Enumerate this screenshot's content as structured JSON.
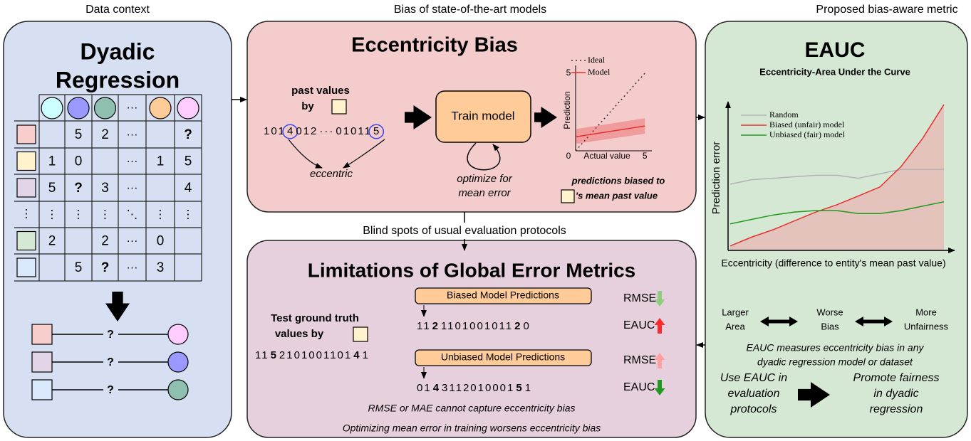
{
  "captions": {
    "data_context": "Data context",
    "bias": "Bias of state-of-the-art models",
    "metric": "Proposed bias-aware metric",
    "blind_spots": "Blind spots of usual evaluation protocols"
  },
  "dyadic": {
    "title": [
      "Dyadic",
      "Regression"
    ],
    "header": [
      {
        "color": "#ccffff"
      },
      {
        "color": "#9999ff"
      },
      {
        "color": "#8fbfae"
      },
      {
        "text": "···"
      },
      {
        "color": "#ffcc99"
      },
      {
        "color": "#ffccff"
      }
    ],
    "rows": [
      {
        "color": "#f8cecc",
        "cells": [
          null,
          "5",
          "2",
          "···",
          null,
          "?"
        ]
      },
      {
        "color": "#fff2cc",
        "cells": [
          "1",
          "0",
          null,
          "···",
          "1",
          "5"
        ]
      },
      {
        "color": "#e1d5e7",
        "cells": [
          "5",
          "?",
          "3",
          "···",
          null,
          "4"
        ]
      },
      {
        "text": "⋮",
        "cells": [
          "⋮",
          "⋮",
          "⋮",
          "⋱",
          "⋮",
          "⋮"
        ]
      },
      {
        "color": "#d5e8d4",
        "cells": [
          "2",
          null,
          "2",
          "···",
          "0",
          null
        ]
      },
      {
        "color": "#dae8fc",
        "cells": [
          null,
          "5",
          "?",
          "···",
          "3",
          null
        ]
      }
    ],
    "pairs": [
      {
        "from": "#f8cecc",
        "to": "#ffccff",
        "label": "?"
      },
      {
        "from": "#e1d5e7",
        "to": "#9999ff",
        "label": "?"
      },
      {
        "from": "#dae8fc",
        "to": "#8fbfae",
        "label": "?"
      }
    ]
  },
  "bias": {
    "title": "Eccentricity Bias",
    "past_values": [
      "past values",
      "by"
    ],
    "sequence": [
      {
        "text": "101"
      },
      {
        "text": "4",
        "circled": true
      },
      {
        "text": "012"
      },
      {
        "text": "···"
      },
      {
        "text": "01011"
      },
      {
        "text": "5",
        "circled": true
      }
    ],
    "eccentric": "eccentric",
    "model_box": "Train model",
    "optimize": [
      "optimize for",
      "mean error"
    ],
    "result": [
      "predictions biased to",
      "'s mean past value"
    ],
    "chart": {
      "type": "line",
      "x_label": "Actual value",
      "y_label": "Prediction",
      "xlim": [
        0,
        5.5
      ],
      "ylim": [
        0,
        5.5
      ],
      "xticks": [
        0,
        5
      ],
      "yticks": [
        5
      ],
      "series": [
        {
          "name": "Ideal",
          "color": "#333333",
          "style": "dotted",
          "x": [
            0,
            5
          ],
          "values": [
            0,
            5
          ]
        },
        {
          "name": "Model",
          "color": "#e83030",
          "x": [
            0,
            5
          ],
          "values": [
            0.9,
            1.6
          ],
          "lower": [
            0.45,
            1.1
          ],
          "upper": [
            1.4,
            2.1
          ]
        }
      ]
    }
  },
  "limits": {
    "title": "Limitations of Global Error Metrics",
    "ground_truth": [
      "Test ground truth",
      "values by"
    ],
    "truth_sequence": [
      {
        "text": "11"
      },
      {
        "text": "5",
        "bold": true
      },
      {
        "text": "2101001101"
      },
      {
        "text": "4",
        "bold": true
      },
      {
        "text": "1"
      }
    ],
    "predictions": [
      {
        "label": "Biased Model Predictions",
        "sequence": [
          {
            "text": "11"
          },
          {
            "text": "2",
            "bold": true
          },
          {
            "text": "1101001011"
          },
          {
            "text": "2",
            "bold": true
          },
          {
            "text": "0"
          }
        ],
        "metrics": [
          {
            "name": "RMSE",
            "trend": "down",
            "color": "#8fce7f"
          },
          {
            "name": "EAUC",
            "trend": "up",
            "color": "#ff2a2a"
          }
        ]
      },
      {
        "label": "Unbiased Model Predictions",
        "sequence": [
          {
            "text": "01"
          },
          {
            "text": "4",
            "bold": true
          },
          {
            "text": "3112010001"
          },
          {
            "text": "5",
            "bold": true
          },
          {
            "text": "1"
          }
        ],
        "metrics": [
          {
            "name": "RMSE",
            "trend": "up",
            "color": "#ff9f9f"
          },
          {
            "name": "EAUC",
            "trend": "down",
            "color": "#1f9a1f"
          }
        ]
      }
    ],
    "notes": [
      "RMSE  or MAE cannot capture eccentricity bias",
      "Optimizing mean error in training worsens eccentricity bias"
    ]
  },
  "eauc": {
    "title": "EAUC",
    "subtitle": "Eccentricity-Area Under the Curve",
    "chart": {
      "type": "line",
      "x_label": "Eccentricity (difference to entity's mean past value)",
      "y_label": "Prediction error",
      "xlim": [
        0,
        1.05
      ],
      "ylim": [
        0,
        1
      ],
      "x": [
        0,
        0.1,
        0.2,
        0.3,
        0.4,
        0.5,
        0.6,
        0.7,
        0.8,
        0.9,
        1
      ],
      "series": [
        {
          "name": "Random",
          "color": "#b3b3b3",
          "values": [
            0.45,
            0.48,
            0.49,
            0.5,
            0.51,
            0.51,
            0.49,
            0.52,
            0.55,
            0.55,
            0.55
          ]
        },
        {
          "name": "Biased (unfair) model",
          "color": "#e83030",
          "area": "#e8b4b0",
          "values": [
            0.03,
            0.09,
            0.14,
            0.2,
            0.26,
            0.31,
            0.37,
            0.43,
            0.57,
            0.76,
            0.99
          ]
        },
        {
          "name": "Unbiased (fair) model",
          "color": "#1f9a1f",
          "values": [
            0.18,
            0.21,
            0.24,
            0.26,
            0.27,
            0.27,
            0.25,
            0.25,
            0.27,
            0.3,
            0.33
          ]
        }
      ]
    },
    "relation": [
      [
        "Larger",
        "Area"
      ],
      [
        "Worse",
        "Bias"
      ],
      [
        "More",
        "Unfairness"
      ]
    ],
    "statement": [
      "EAUC measures eccentricity bias in any",
      "dyadic regression model or dataset"
    ],
    "use": [
      "Use EAUC in",
      "evaluation",
      "protocols"
    ],
    "promote": [
      "Promote fairness",
      "in dyadic",
      "regression"
    ]
  }
}
